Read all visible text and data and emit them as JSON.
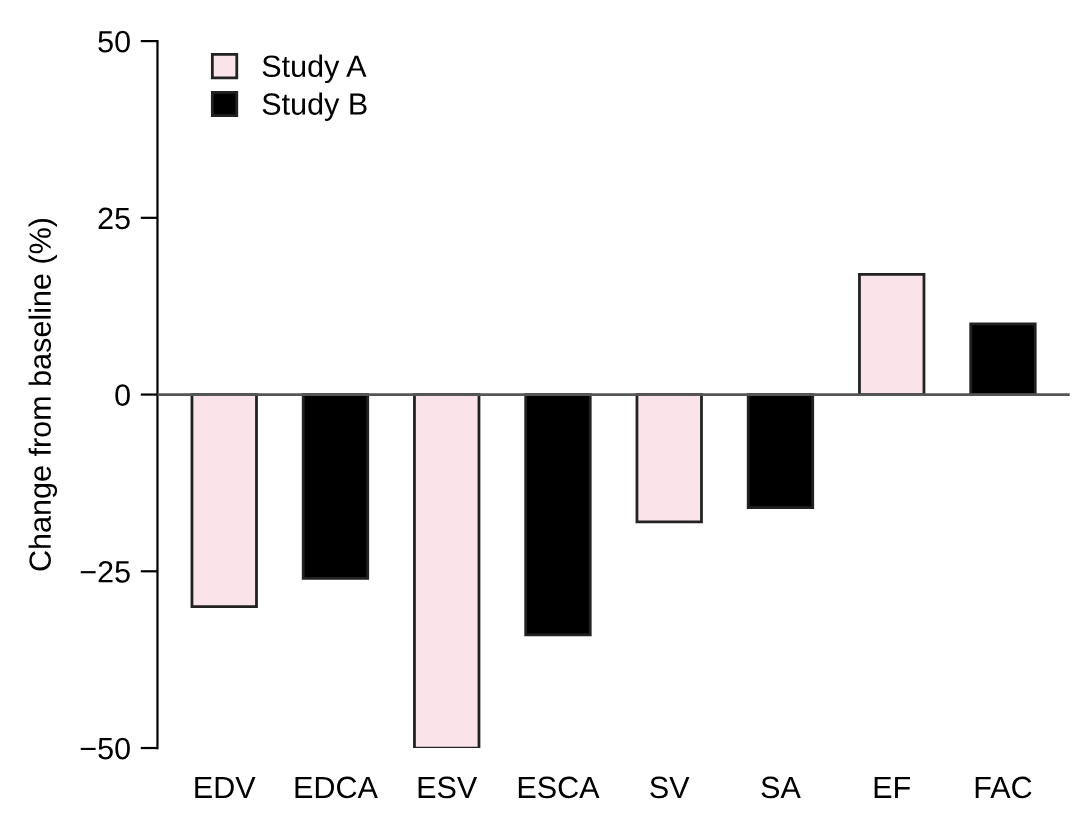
{
  "chart_data": {
    "type": "bar",
    "ylabel": "Change from baseline (%)",
    "categories": [
      "EDV",
      "EDCA",
      "ESV",
      "ESCA",
      "SV",
      "SA",
      "EF",
      "FAC"
    ],
    "series": [
      {
        "name": "Study A",
        "color": "#fbe3ea",
        "values": [
          -30,
          null,
          -50,
          null,
          -18,
          null,
          17,
          null
        ]
      },
      {
        "name": "Study B",
        "color": "#000000",
        "values": [
          null,
          -26,
          null,
          -34,
          null,
          -16,
          null,
          10
        ]
      }
    ],
    "ylim": [
      -50,
      50
    ],
    "yticks": [
      50,
      25,
      0,
      {
        "value": -25,
        "label": "−25"
      },
      {
        "value": -50,
        "label": "−50"
      }
    ],
    "ref_lines": [
      {
        "axis": "y",
        "value": 0,
        "color": "#555555"
      }
    ],
    "legend": "top left",
    "grid": false
  }
}
